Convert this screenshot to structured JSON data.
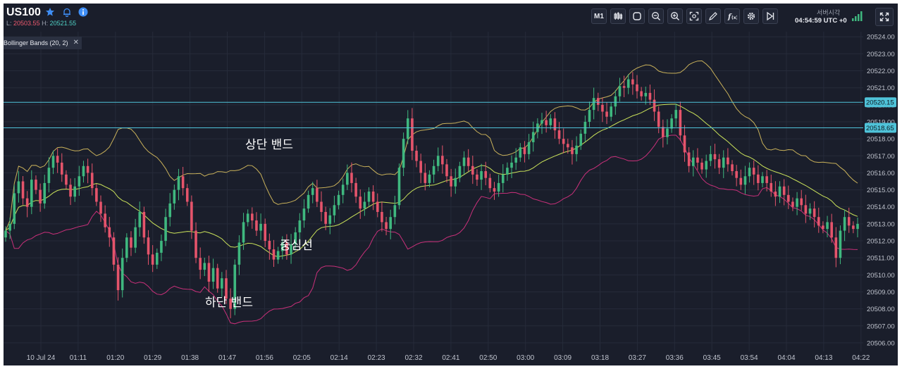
{
  "header": {
    "symbol": "US100",
    "low_label": "L:",
    "low_value": "20503.55",
    "high_label": "H:",
    "high_value": "20521.55",
    "timeframe": "M1",
    "server_time_label": "서버시각",
    "server_time": "04:54:59 UTC +0",
    "toolbar_icons": [
      "candles-icon",
      "shape-icon",
      "zoom-out-icon",
      "zoom-in-icon",
      "fit-icon",
      "pencil-icon",
      "fx-icon",
      "gear-icon",
      "play-end-icon"
    ]
  },
  "indicator_label": "Bollinger Bands (20, 2)",
  "annotations": {
    "upper": "상단 밴드",
    "middle": "중심선",
    "lower": "하단 밴드"
  },
  "colors": {
    "background": "#1a1e2b",
    "up": "#3fb87f",
    "down": "#e5546b",
    "upper_band": "#c9b15a",
    "middle_band": "#cbe35a",
    "lower_band": "#c9307a",
    "hline": "#4fc3d9"
  },
  "chart_data": {
    "type": "candlestick",
    "indicator": "Bollinger Bands (20, 2)",
    "y_ticks": [
      "20506.00",
      "20507.00",
      "20508.00",
      "20509.00",
      "20510.00",
      "20511.00",
      "20512.00",
      "20513.00",
      "20514.00",
      "20515.00",
      "20516.00",
      "20517.00",
      "20518.00",
      "20519.00",
      "20520.00",
      "20521.00",
      "20522.00",
      "20523.00",
      "20524.00"
    ],
    "ylim": [
      20505.5,
      20524.3
    ],
    "x_ticks": [
      "10 Jul 24",
      "01:11",
      "01:20",
      "01:29",
      "01:38",
      "01:47",
      "01:56",
      "02:05",
      "02:14",
      "02:23",
      "02:32",
      "02:41",
      "02:50",
      "03:00",
      "03:09",
      "03:18",
      "03:27",
      "03:36",
      "03:45",
      "03:54",
      "04:04",
      "04:13",
      "04:22"
    ],
    "horizontal_lines": [
      {
        "value": 20520.15,
        "label": "20520.15"
      },
      {
        "value": 20518.65,
        "label": "20518.65"
      }
    ],
    "close": [
      20512.6,
      20513.0,
      20514.8,
      20515.5,
      20514.5,
      20514.0,
      20515.6,
      20515.0,
      20514.2,
      20515.4,
      20516.3,
      20517.0,
      20516.6,
      20515.9,
      20515.3,
      20514.6,
      20515.2,
      20515.8,
      20516.4,
      20516.0,
      20515.1,
      20514.3,
      20513.6,
      20512.8,
      20512.2,
      20510.6,
      20509.1,
      20511.0,
      20512.2,
      20511.6,
      20512.8,
      20513.7,
      20512.2,
      20511.2,
      20510.6,
      20511.3,
      20512.0,
      20513.4,
      20514.2,
      20515.0,
      20515.8,
      20515.1,
      20514.3,
      20512.6,
      20511.0,
      20510.3,
      20510.7,
      20509.6,
      20510.4,
      20509.2,
      20509.8,
      20508.6,
      20508.0,
      20510.6,
      20511.9,
      20513.1,
      20513.6,
      20513.2,
      20512.6,
      20513.0,
      20512.0,
      20511.5,
      20510.9,
      20511.4,
      20511.9,
      20511.2,
      20511.8,
      20512.5,
      20513.2,
      20513.9,
      20514.7,
      20515.1,
      20514.3,
      20513.7,
      20513.0,
      20513.5,
      20514.1,
      20514.7,
      20515.3,
      20516.0,
      20515.4,
      20514.6,
      20513.9,
      20514.3,
      20514.9,
      20514.3,
      20513.7,
      20513.1,
      20512.7,
      20513.4,
      20514.1,
      20516.3,
      20518.0,
      20519.2,
      20517.3,
      20516.7,
      20516.0,
      20515.4,
      20515.9,
      20516.4,
      20517.0,
      20516.5,
      20515.8,
      20515.2,
      20515.7,
      20516.4,
      20516.9,
      20516.4,
      20515.9,
      20515.6,
      20516.1,
      20515.7,
      20515.1,
      20514.9,
      20515.4,
      20515.9,
      20516.3,
      20516.6,
      20516.9,
      20517.5,
      20517.1,
      20517.8,
      20518.4,
      20518.9,
      20519.1,
      20518.8,
      20519.2,
      20518.5,
      20518.0,
      20517.7,
      20517.5,
      20517.1,
      20517.6,
      20518.3,
      20519.0,
      20519.7,
      20520.4,
      20520.0,
      20519.6,
      20519.3,
      20519.9,
      20520.5,
      20521.1,
      20521.0,
      20521.5,
      20521.2,
      20520.8,
      20520.5,
      20520.7,
      20520.3,
      20519.6,
      20518.7,
      20518.1,
      20518.6,
      20519.2,
      20519.7,
      20518.2,
      20517.2,
      20516.4,
      20516.9,
      20516.6,
      20516.2,
      20516.7,
      20517.1,
      20516.8,
      20516.3,
      20516.9,
      20516.5,
      20516.1,
      20515.7,
      20515.3,
      20515.8,
      20516.3,
      20515.9,
      20515.4,
      20515.8,
      20515.4,
      20514.9,
      20514.6,
      20515.2,
      20514.7,
      20514.3,
      20514.0,
      20514.5,
      20514.1,
      20513.6,
      20513.9,
      20513.4,
      20512.9,
      20512.7,
      20513.1,
      20512.2,
      20511.0,
      20512.6,
      20513.4,
      20512.9,
      20512.7,
      20513.0
    ]
  }
}
